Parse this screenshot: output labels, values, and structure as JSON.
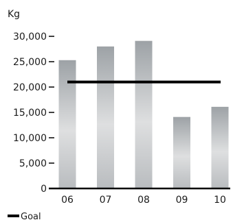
{
  "chart_data": {
    "type": "bar",
    "ylabel": "Kg",
    "categories": [
      "06",
      "07",
      "08",
      "09",
      "10"
    ],
    "series": [
      {
        "values": [
          25300,
          28000,
          29100,
          14100,
          16100
        ]
      }
    ],
    "ylim": [
      0,
      30000
    ],
    "yticks": [
      0,
      5000,
      10000,
      15000,
      20000,
      25000,
      30000
    ],
    "ytick_labels": [
      "0",
      "5,000",
      "10,000",
      "15,000",
      "20,000",
      "25,000",
      "30,000"
    ],
    "goal": {
      "name": "Goal",
      "value": 21000
    },
    "legend": {
      "placement": "bottom-left",
      "entries": [
        "Goal"
      ]
    },
    "grid": false,
    "colors": {
      "bar_dark": "#9da2a6",
      "bar_light": "#dedfe0",
      "goal_line": "#000000",
      "axis": "#000000"
    }
  }
}
